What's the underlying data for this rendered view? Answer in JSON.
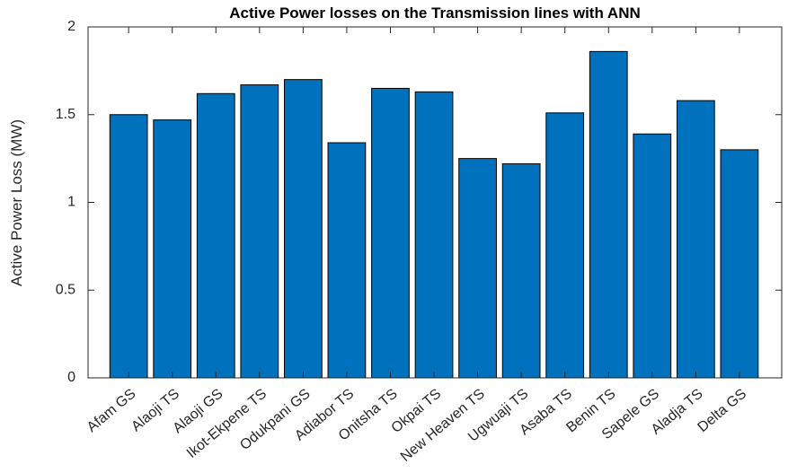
{
  "chart_data": {
    "type": "bar",
    "title": "Active Power losses on the Transmission lines with ANN",
    "y_label": "Active Power Loss (MW)",
    "categories": [
      "Afam GS",
      "Alaoji TS",
      "Alaoji GS",
      "Ikot-Ekpene TS",
      "Odukpani GS",
      "Adiabor TS",
      "Onitsha TS",
      "Okpai TS",
      "New Heaven TS",
      "Ugwuaji TS",
      "Asaba TS",
      "Benin TS",
      "Sapele GS",
      "Aladja TS",
      "Delta GS"
    ],
    "values": [
      1.5,
      1.47,
      1.62,
      1.67,
      1.7,
      1.34,
      1.65,
      1.63,
      1.25,
      1.22,
      1.51,
      1.86,
      1.39,
      1.58,
      1.3
    ],
    "color": "#0072bd",
    "ylim": [
      0,
      2
    ],
    "yticks": [
      0,
      0.5,
      1,
      1.5,
      2
    ],
    "grid": false
  }
}
